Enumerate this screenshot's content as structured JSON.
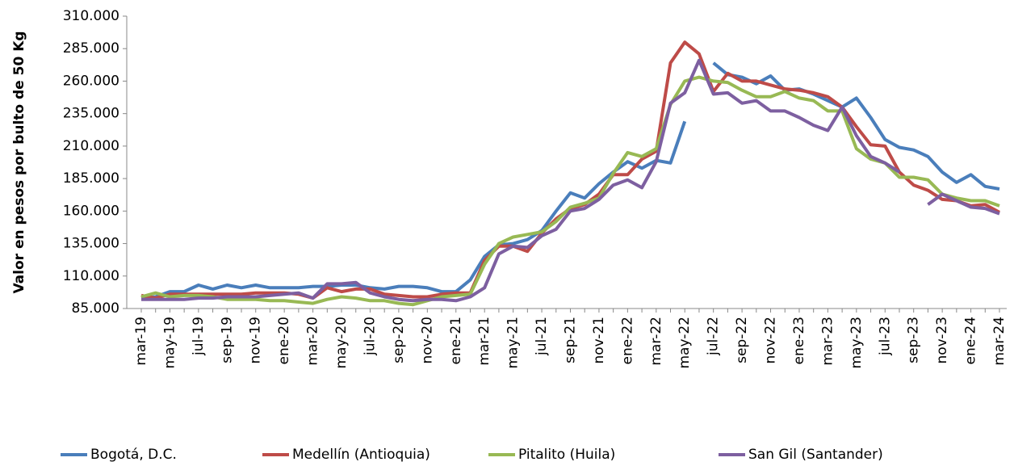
{
  "chart_data": {
    "type": "line",
    "y_label": "Valor en pesos por bulto de 50 Kg",
    "categories": [
      "mar-19",
      null,
      "may-19",
      null,
      "jul-19",
      null,
      "sep-19",
      null,
      "nov-19",
      null,
      "ene-20",
      null,
      "mar-20",
      null,
      "may-20",
      null,
      "jul-20",
      null,
      "sep-20",
      null,
      "nov-20",
      null,
      "ene-21",
      null,
      "mar-21",
      null,
      "may-21",
      null,
      "jul-21",
      null,
      "sep-21",
      null,
      "nov-21",
      null,
      "ene-22",
      null,
      "mar-22",
      null,
      "may-22",
      null,
      "jul-22",
      null,
      "sep-22",
      null,
      "nov-22",
      null,
      "ene-23",
      null,
      "mar-23",
      null,
      "may-23",
      null,
      "jul-23",
      null,
      "sep-23",
      null,
      "nov-23",
      null,
      "ene-24",
      null,
      "mar-24"
    ],
    "series": [
      {
        "name": "Bogotá, D.C.",
        "color": "#4a7ebb",
        "values": [
          93000,
          94000,
          98000,
          98000,
          103000,
          100000,
          103000,
          101000,
          103000,
          101000,
          101000,
          101000,
          102000,
          102000,
          103000,
          103000,
          101000,
          100000,
          102000,
          102000,
          101000,
          98000,
          98000,
          107000,
          125000,
          134000,
          135000,
          138000,
          145000,
          160000,
          174000,
          170000,
          181000,
          190000,
          198000,
          193000,
          199000,
          197000,
          229000,
          null,
          274000,
          265000,
          263000,
          258000,
          264000,
          253000,
          254000,
          250000,
          245000,
          240000,
          247000,
          232000,
          215000,
          209000,
          207000,
          202000,
          190000,
          182000,
          188000,
          179000,
          177000
        ]
      },
      {
        "name": "Medellín (Antioquia)",
        "color": "#be4b48",
        "values": [
          95000,
          93000,
          96000,
          96000,
          96000,
          96000,
          96000,
          96000,
          97000,
          97000,
          97000,
          96000,
          93000,
          101000,
          98000,
          100000,
          100000,
          96000,
          95000,
          94000,
          94000,
          96000,
          97000,
          97000,
          122000,
          133000,
          133000,
          129000,
          143000,
          154000,
          162000,
          165000,
          173000,
          188000,
          188000,
          200000,
          206000,
          274000,
          290000,
          281000,
          252000,
          266000,
          260000,
          260000,
          257000,
          254000,
          253000,
          251000,
          248000,
          240000,
          225000,
          211000,
          210000,
          190000,
          180000,
          176000,
          169000,
          168000,
          164000,
          165000,
          159000
        ]
      },
      {
        "name": "Pitalito (Huila)",
        "color": "#98b954",
        "values": [
          94000,
          97000,
          94000,
          95000,
          95000,
          94000,
          92000,
          92000,
          92000,
          91000,
          91000,
          90000,
          89000,
          92000,
          94000,
          93000,
          91000,
          91000,
          89000,
          88000,
          91000,
          94000,
          95000,
          96000,
          119000,
          135000,
          140000,
          142000,
          144000,
          152000,
          163000,
          166000,
          170000,
          189000,
          205000,
          202000,
          208000,
          242000,
          260000,
          263000,
          260000,
          259000,
          253000,
          248000,
          248000,
          252000,
          247000,
          245000,
          237000,
          237000,
          208000,
          200000,
          197000,
          186000,
          186000,
          184000,
          173000,
          170000,
          168000,
          168000,
          164000
        ]
      },
      {
        "name": "San Gil (Santander)",
        "color": "#7d5fa0",
        "values": [
          92000,
          92000,
          92000,
          92000,
          93000,
          93000,
          94000,
          94000,
          94000,
          95000,
          96000,
          97000,
          93000,
          104000,
          104000,
          105000,
          97000,
          94000,
          92000,
          91000,
          92000,
          92000,
          91000,
          94000,
          101000,
          127000,
          133000,
          132000,
          141000,
          146000,
          160000,
          162000,
          169000,
          180000,
          184000,
          178000,
          198000,
          243000,
          251000,
          276000,
          250000,
          251000,
          243000,
          245000,
          237000,
          237000,
          232000,
          226000,
          222000,
          240000,
          218000,
          202000,
          197000,
          190000,
          null,
          165000,
          173000,
          168000,
          163000,
          162000,
          158000
        ]
      }
    ],
    "ylim": [
      85000,
      310000
    ],
    "yticks": [
      {
        "value": 85000,
        "label": "85.000"
      },
      {
        "value": 110000,
        "label": "110.000"
      },
      {
        "value": 135000,
        "label": "135.000"
      },
      {
        "value": 160000,
        "label": "160.000"
      },
      {
        "value": 185000,
        "label": "185.000"
      },
      {
        "value": 210000,
        "label": "210.000"
      },
      {
        "value": 235000,
        "label": "235.000"
      },
      {
        "value": 260000,
        "label": "260.000"
      },
      {
        "value": 285000,
        "label": "285.000"
      },
      {
        "value": 310000,
        "label": "310.000"
      }
    ],
    "grid": false
  }
}
